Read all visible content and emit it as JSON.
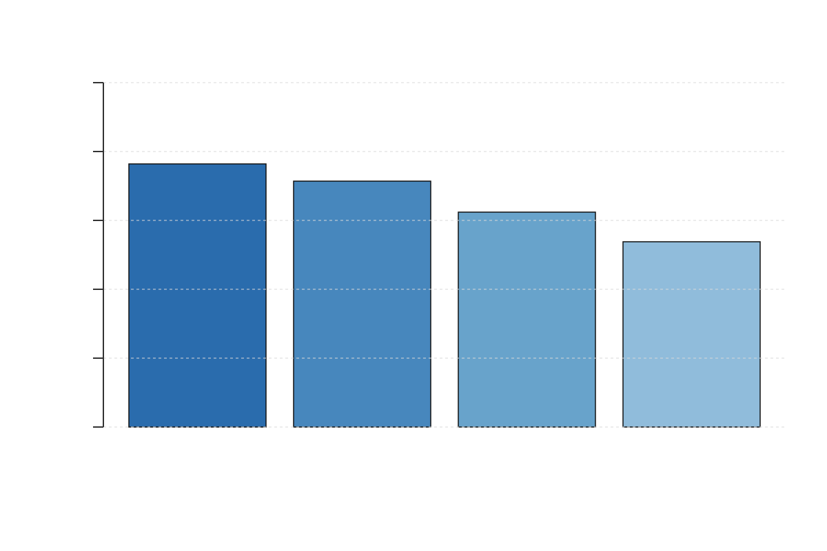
{
  "chart_data": {
    "type": "bar",
    "title": "",
    "xlabel": "",
    "ylabel": "",
    "categories": [
      "",
      "",
      "",
      ""
    ],
    "values": [
      3.82,
      3.57,
      3.12,
      2.69
    ],
    "ylim": [
      0,
      5
    ],
    "yticks": [
      0,
      1,
      2,
      3,
      4,
      5
    ],
    "grid": true,
    "legend": "none",
    "colors": [
      "#2a6cad",
      "#4787bd",
      "#68a3cb",
      "#90bcdb"
    ],
    "edge_color": "#111111",
    "grid_color": "#d9d9d9",
    "axis_color": "#333333"
  }
}
